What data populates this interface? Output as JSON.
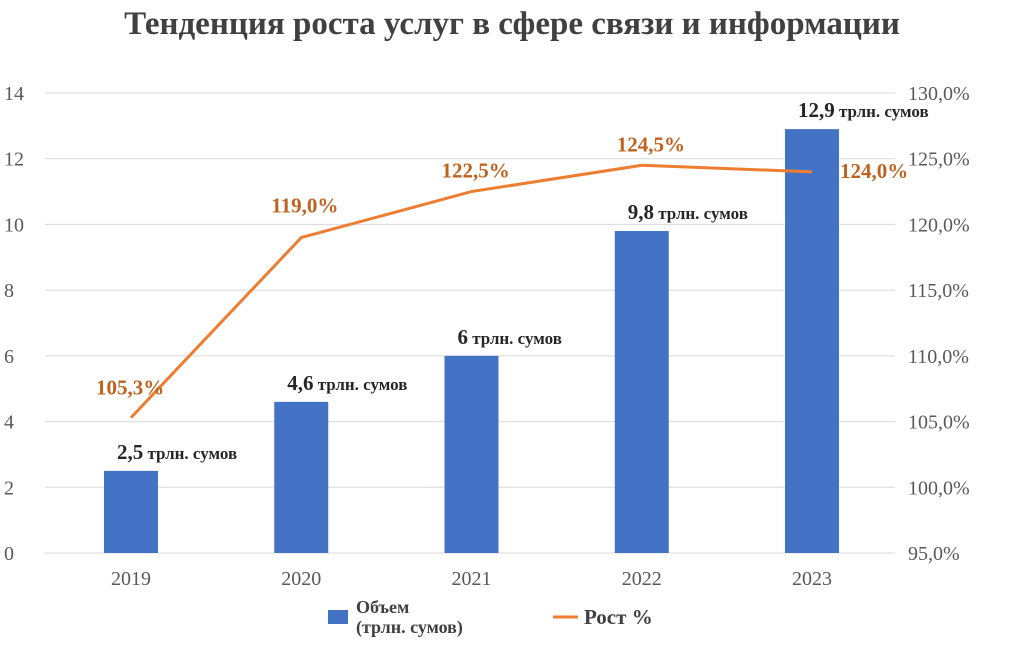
{
  "chart_data": {
    "type": "bar+line",
    "title": "Тенденция роста услуг в сфере связи и информации",
    "categories": [
      "2019",
      "2020",
      "2021",
      "2022",
      "2023"
    ],
    "series": [
      {
        "name": "Объем (трлн. сумов)",
        "type": "bar",
        "axis": "left",
        "color": "#4472c4",
        "values": [
          2.5,
          4.6,
          6,
          9.8,
          12.9
        ],
        "labels": [
          "2,5",
          "4,6",
          "6",
          "9,8",
          "12,9"
        ],
        "label_suffix": "трлн. сумов"
      },
      {
        "name": "Рост %",
        "type": "line",
        "axis": "right",
        "color": "#ed7d31",
        "values": [
          105.3,
          119.0,
          122.5,
          124.5,
          124.0
        ],
        "labels": [
          "105,3%",
          "119,0%",
          "122,5%",
          "124,5%",
          "124,0%"
        ]
      }
    ],
    "y_left": {
      "range": [
        0,
        14
      ],
      "ticks": [
        "0",
        "2",
        "4",
        "6",
        "8",
        "10",
        "12",
        "14"
      ]
    },
    "y_right": {
      "range": [
        95,
        130
      ],
      "ticks": [
        "95,0%",
        "100,0%",
        "105,0%",
        "110,0%",
        "115,0%",
        "120,0%",
        "125,0%",
        "130,0%"
      ]
    },
    "legend": {
      "position": "bottom",
      "items": [
        "Объем",
        "(трлн. сумов)",
        "Рост %"
      ]
    },
    "grid": true
  }
}
